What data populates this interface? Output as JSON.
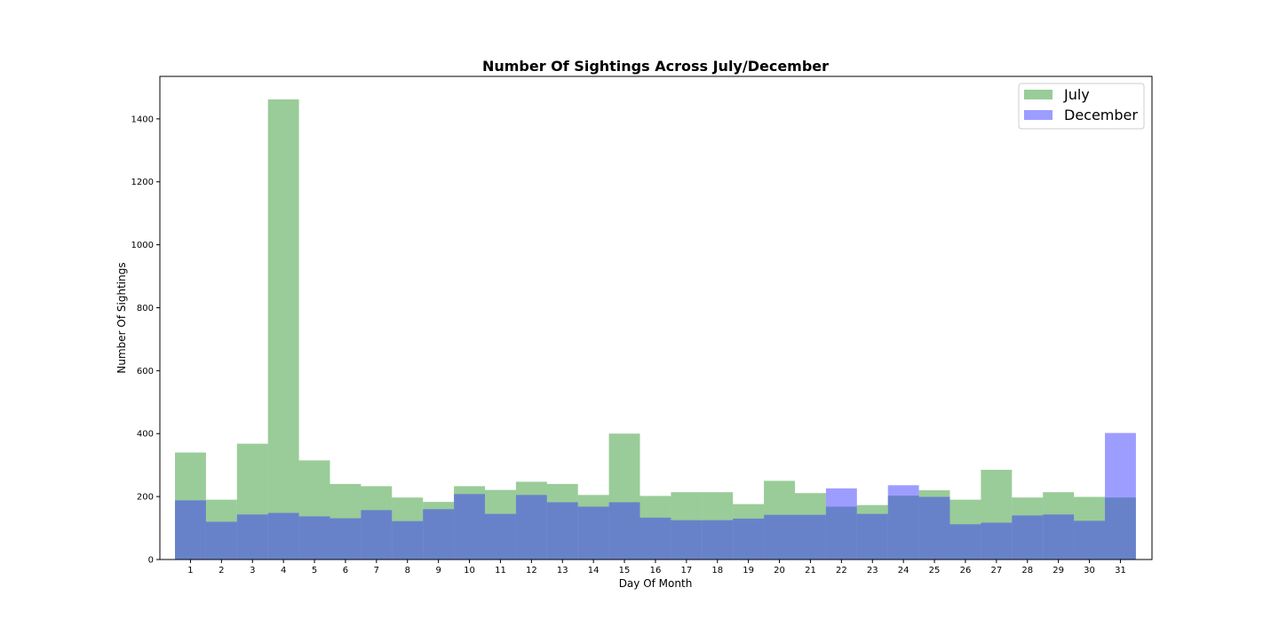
{
  "chart_data": {
    "type": "bar",
    "title": "Number Of Sightings Across July/December",
    "xlabel": "Day Of Month",
    "ylabel": "Number Of Sightings",
    "categories": [
      "1",
      "2",
      "3",
      "4",
      "5",
      "6",
      "7",
      "8",
      "9",
      "10",
      "11",
      "12",
      "13",
      "14",
      "15",
      "16",
      "17",
      "18",
      "19",
      "20",
      "21",
      "22",
      "23",
      "24",
      "25",
      "26",
      "27",
      "28",
      "29",
      "30",
      "31"
    ],
    "yticks": [
      "0",
      "200",
      "400",
      "600",
      "800",
      "1000",
      "1200",
      "1400"
    ],
    "ylim": [
      0,
      1535
    ],
    "grid": false,
    "legend_position": "top-right",
    "series": [
      {
        "name": "July",
        "color": "#3c9e3c",
        "opacity": 0.52,
        "values": [
          340,
          190,
          368,
          1462,
          315,
          240,
          233,
          197,
          183,
          233,
          221,
          247,
          240,
          205,
          400,
          202,
          214,
          214,
          176,
          250,
          211,
          168,
          173,
          203,
          220,
          190,
          285,
          197,
          214,
          199,
          197
        ]
      },
      {
        "name": "December",
        "color": "#3333ff",
        "opacity": 0.48,
        "values": [
          188,
          120,
          143,
          148,
          137,
          131,
          157,
          122,
          160,
          208,
          145,
          205,
          182,
          168,
          182,
          133,
          125,
          125,
          130,
          142,
          142,
          226,
          145,
          236,
          199,
          112,
          117,
          140,
          143,
          123,
          402
        ]
      }
    ]
  }
}
